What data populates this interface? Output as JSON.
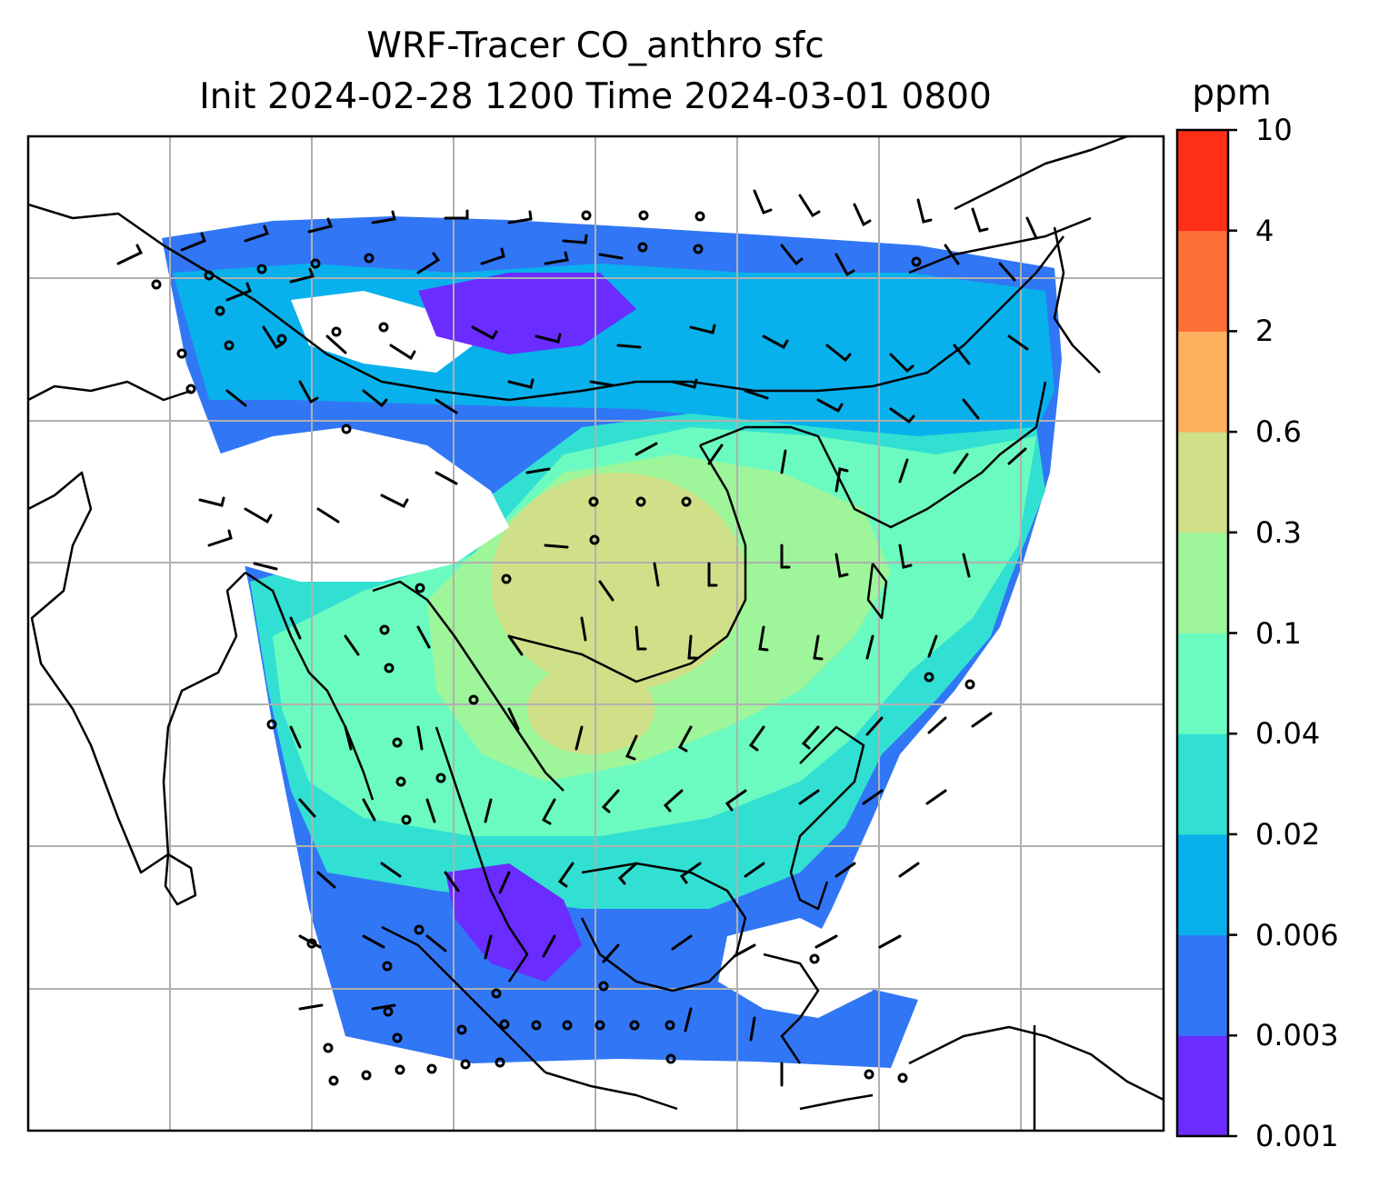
{
  "title_line1": "WRF-Tracer CO_anthro sfc",
  "title_line2": "Init 2024-02-28 1200 Time 2024-03-01 0800",
  "colorbar": {
    "unit": "ppm",
    "levels": [
      "0.001",
      "0.003",
      "0.006",
      "0.02",
      "0.04",
      "0.1",
      "0.3",
      "0.6",
      "2",
      "4",
      "10"
    ],
    "colors": [
      "#6a2cff",
      "#3176f5",
      "#08b1ec",
      "#31e0d2",
      "#6bfbc0",
      "#9ef59a",
      "#cfe088",
      "#fdb05e",
      "#ff7038",
      "#ff2e16"
    ]
  },
  "map": {
    "gridlines": true,
    "field_colors": {
      "very_low": "#6a2cff",
      "low": "#3176f5",
      "mid_low": "#08b1ec",
      "mid": "#31e0d2",
      "mid_high": "#6bfbc0",
      "high": "#9ef59a",
      "peak": "#cfe088"
    },
    "coastline_color": "#000000",
    "wind_barb_color": "#000000"
  }
}
